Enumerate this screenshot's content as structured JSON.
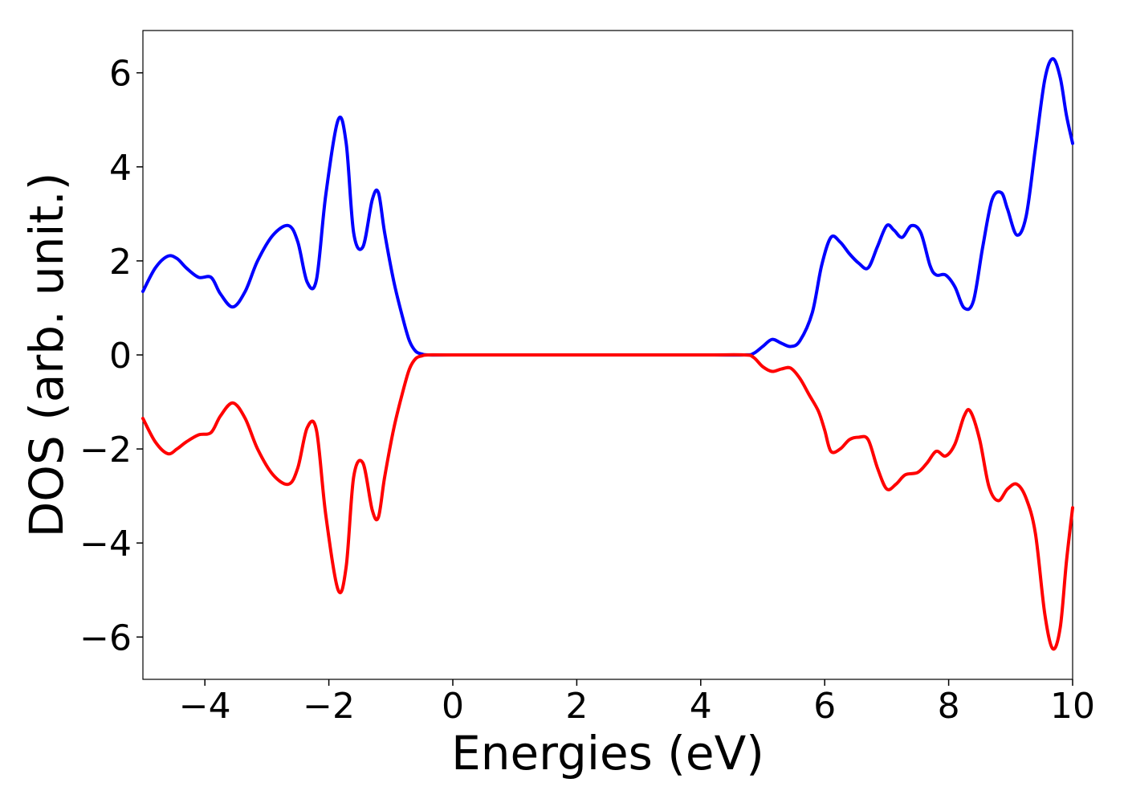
{
  "chart_data": {
    "type": "line",
    "title": "",
    "xlabel": "Energies (eV)",
    "ylabel": "DOS (arb. unit.)",
    "xlim": [
      -5,
      10
    ],
    "ylim": [
      -6.9,
      6.9
    ],
    "grid": false,
    "legend": "none",
    "x_ticks": [
      "−4",
      "−2",
      "0",
      "2",
      "4",
      "6",
      "8",
      "10"
    ],
    "x_tick_values": [
      -4,
      -2,
      0,
      2,
      4,
      6,
      8,
      10
    ],
    "y_ticks": [
      "−6",
      "−4",
      "−2",
      "0",
      "2",
      "4",
      "6"
    ],
    "y_tick_values": [
      -6,
      -4,
      -2,
      0,
      2,
      4,
      6
    ],
    "series": [
      {
        "color": "#0000ff",
        "points": [
          [
            -5.0,
            1.35
          ],
          [
            -4.8,
            1.85
          ],
          [
            -4.6,
            2.1
          ],
          [
            -4.45,
            2.05
          ],
          [
            -4.3,
            1.85
          ],
          [
            -4.1,
            1.65
          ],
          [
            -3.9,
            1.65
          ],
          [
            -3.75,
            1.3
          ],
          [
            -3.55,
            1.02
          ],
          [
            -3.35,
            1.35
          ],
          [
            -3.15,
            2.0
          ],
          [
            -2.9,
            2.55
          ],
          [
            -2.65,
            2.75
          ],
          [
            -2.5,
            2.4
          ],
          [
            -2.35,
            1.55
          ],
          [
            -2.2,
            1.6
          ],
          [
            -2.05,
            3.4
          ],
          [
            -1.85,
            5.0
          ],
          [
            -1.72,
            4.5
          ],
          [
            -1.6,
            2.6
          ],
          [
            -1.45,
            2.3
          ],
          [
            -1.3,
            3.3
          ],
          [
            -1.2,
            3.45
          ],
          [
            -1.1,
            2.6
          ],
          [
            -0.95,
            1.55
          ],
          [
            -0.8,
            0.75
          ],
          [
            -0.7,
            0.3
          ],
          [
            -0.6,
            0.08
          ],
          [
            -0.5,
            0.02
          ],
          [
            -0.4,
            0.0
          ],
          [
            0.0,
            0.0
          ],
          [
            2.0,
            0.0
          ],
          [
            4.0,
            0.0
          ],
          [
            4.7,
            0.0
          ],
          [
            4.85,
            0.03
          ],
          [
            5.0,
            0.18
          ],
          [
            5.15,
            0.33
          ],
          [
            5.3,
            0.25
          ],
          [
            5.45,
            0.18
          ],
          [
            5.6,
            0.3
          ],
          [
            5.8,
            0.9
          ],
          [
            5.95,
            1.9
          ],
          [
            6.1,
            2.5
          ],
          [
            6.25,
            2.4
          ],
          [
            6.4,
            2.15
          ],
          [
            6.55,
            1.95
          ],
          [
            6.7,
            1.85
          ],
          [
            6.85,
            2.3
          ],
          [
            7.0,
            2.75
          ],
          [
            7.12,
            2.65
          ],
          [
            7.25,
            2.5
          ],
          [
            7.4,
            2.75
          ],
          [
            7.55,
            2.6
          ],
          [
            7.7,
            1.9
          ],
          [
            7.8,
            1.7
          ],
          [
            7.95,
            1.7
          ],
          [
            8.1,
            1.45
          ],
          [
            8.25,
            1.0
          ],
          [
            8.4,
            1.15
          ],
          [
            8.55,
            2.3
          ],
          [
            8.7,
            3.3
          ],
          [
            8.85,
            3.45
          ],
          [
            8.95,
            3.1
          ],
          [
            9.1,
            2.55
          ],
          [
            9.25,
            2.95
          ],
          [
            9.4,
            4.4
          ],
          [
            9.55,
            5.85
          ],
          [
            9.68,
            6.3
          ],
          [
            9.8,
            5.9
          ],
          [
            9.9,
            5.1
          ],
          [
            10.0,
            4.5
          ]
        ]
      },
      {
        "color": "#ff0000",
        "points": [
          [
            -5.0,
            -1.35
          ],
          [
            -4.8,
            -1.85
          ],
          [
            -4.6,
            -2.1
          ],
          [
            -4.45,
            -2.0
          ],
          [
            -4.3,
            -1.85
          ],
          [
            -4.1,
            -1.7
          ],
          [
            -3.9,
            -1.65
          ],
          [
            -3.75,
            -1.3
          ],
          [
            -3.55,
            -1.02
          ],
          [
            -3.35,
            -1.35
          ],
          [
            -3.15,
            -2.0
          ],
          [
            -2.9,
            -2.55
          ],
          [
            -2.65,
            -2.75
          ],
          [
            -2.5,
            -2.4
          ],
          [
            -2.35,
            -1.55
          ],
          [
            -2.2,
            -1.6
          ],
          [
            -2.05,
            -3.4
          ],
          [
            -1.85,
            -5.0
          ],
          [
            -1.72,
            -4.5
          ],
          [
            -1.6,
            -2.6
          ],
          [
            -1.45,
            -2.3
          ],
          [
            -1.3,
            -3.3
          ],
          [
            -1.2,
            -3.45
          ],
          [
            -1.1,
            -2.6
          ],
          [
            -0.95,
            -1.55
          ],
          [
            -0.8,
            -0.75
          ],
          [
            -0.7,
            -0.3
          ],
          [
            -0.6,
            -0.08
          ],
          [
            -0.5,
            -0.02
          ],
          [
            -0.4,
            0.0
          ],
          [
            0.0,
            0.0
          ],
          [
            2.0,
            0.0
          ],
          [
            4.0,
            0.0
          ],
          [
            4.7,
            0.0
          ],
          [
            4.85,
            -0.05
          ],
          [
            5.0,
            -0.25
          ],
          [
            5.15,
            -0.35
          ],
          [
            5.3,
            -0.3
          ],
          [
            5.45,
            -0.28
          ],
          [
            5.6,
            -0.5
          ],
          [
            5.75,
            -0.85
          ],
          [
            5.9,
            -1.2
          ],
          [
            6.0,
            -1.6
          ],
          [
            6.1,
            -2.05
          ],
          [
            6.25,
            -2.0
          ],
          [
            6.4,
            -1.8
          ],
          [
            6.55,
            -1.75
          ],
          [
            6.7,
            -1.8
          ],
          [
            6.85,
            -2.4
          ],
          [
            7.0,
            -2.85
          ],
          [
            7.15,
            -2.75
          ],
          [
            7.3,
            -2.55
          ],
          [
            7.5,
            -2.5
          ],
          [
            7.65,
            -2.3
          ],
          [
            7.8,
            -2.05
          ],
          [
            7.95,
            -2.15
          ],
          [
            8.1,
            -1.9
          ],
          [
            8.25,
            -1.3
          ],
          [
            8.35,
            -1.2
          ],
          [
            8.5,
            -1.8
          ],
          [
            8.65,
            -2.8
          ],
          [
            8.8,
            -3.1
          ],
          [
            8.95,
            -2.85
          ],
          [
            9.1,
            -2.75
          ],
          [
            9.25,
            -3.05
          ],
          [
            9.4,
            -3.8
          ],
          [
            9.55,
            -5.5
          ],
          [
            9.68,
            -6.25
          ],
          [
            9.8,
            -5.8
          ],
          [
            9.9,
            -4.4
          ],
          [
            10.0,
            -3.25
          ]
        ]
      }
    ]
  }
}
